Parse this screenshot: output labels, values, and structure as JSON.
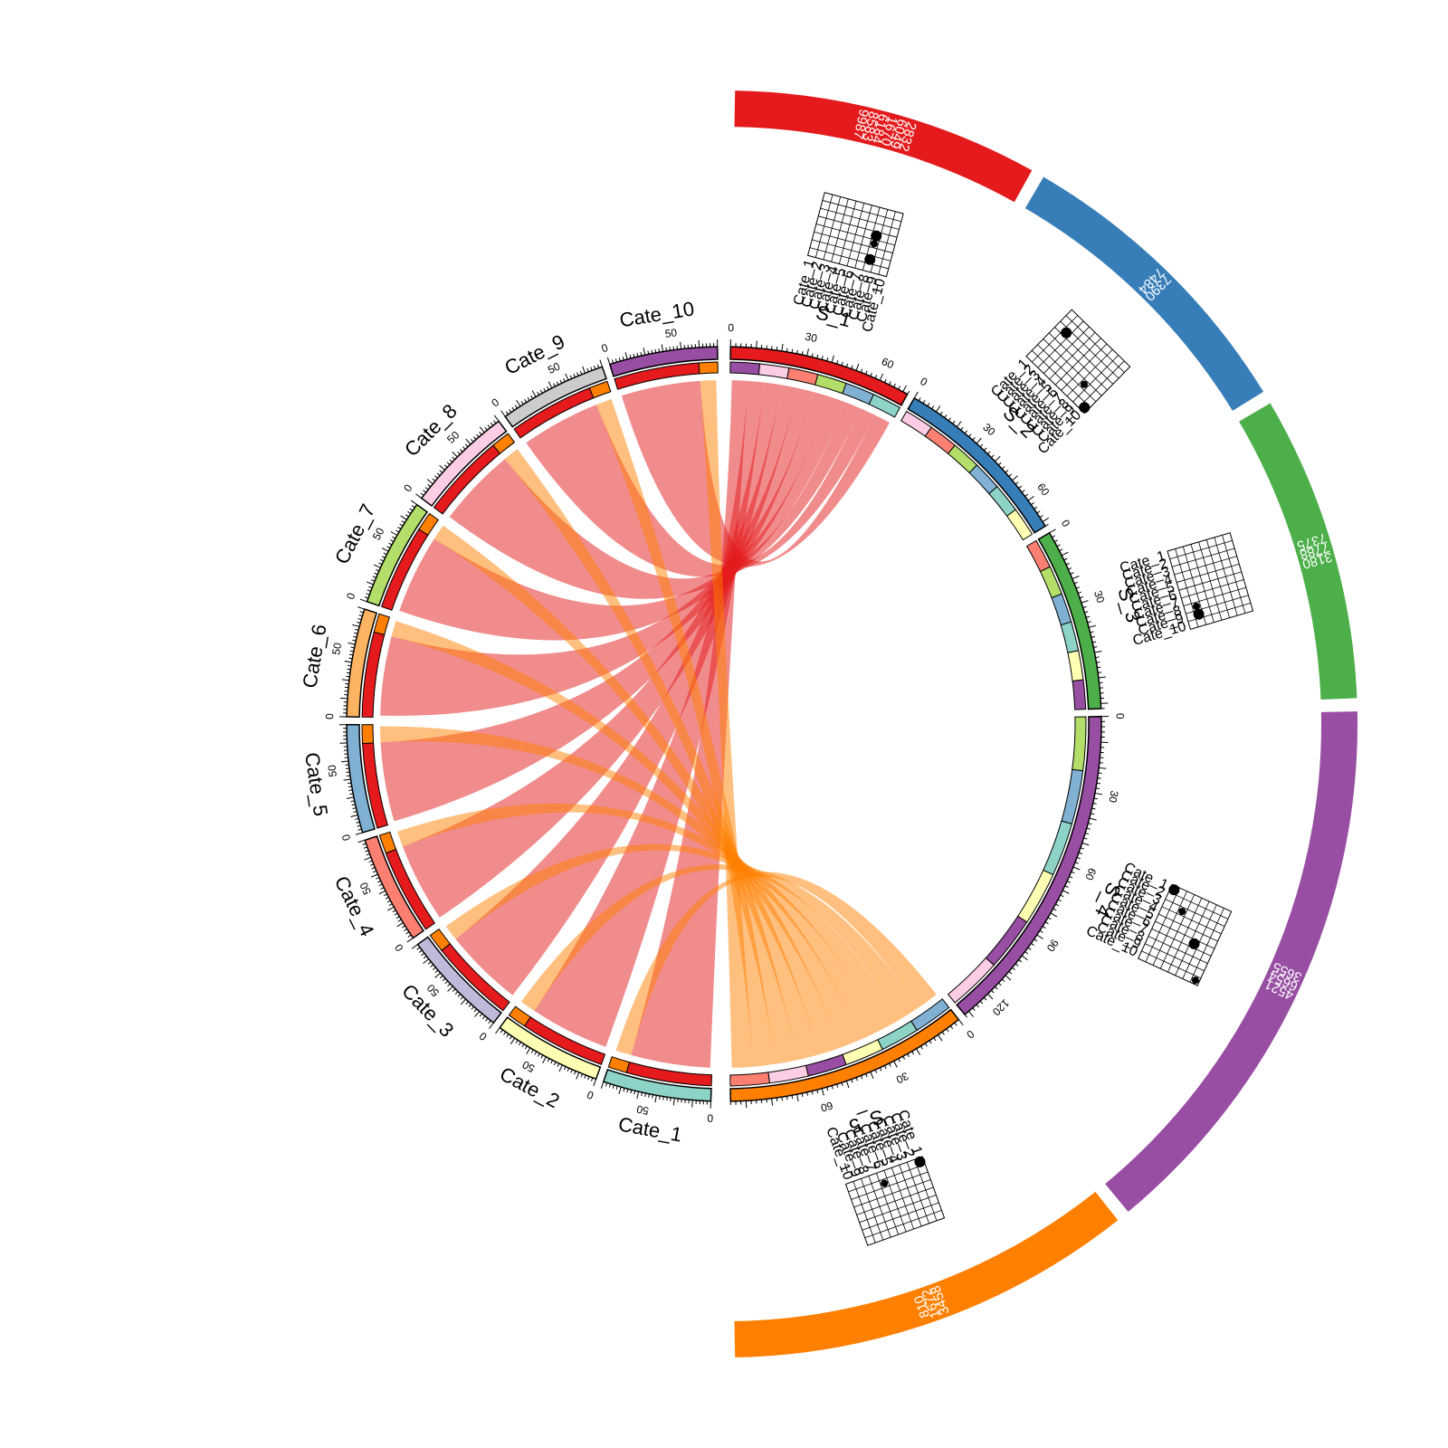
{
  "chart_data": {
    "type": "chord",
    "sources": [
      {
        "name": "S_1",
        "color": "#E41A1C",
        "size": 72,
        "tick_labels": [
          "0",
          "30",
          "60"
        ],
        "outer_numbers": [
          "9987",
          "8583",
          "6184",
          "1670",
          "6049",
          "2832"
        ],
        "dots": [
          {
            "category": "Cate_8",
            "value": 2
          },
          {
            "category": "Cate_8",
            "value": 4
          },
          {
            "category": "Cate_8",
            "value": 5
          }
        ]
      },
      {
        "name": "S_2",
        "color": "#377EB8",
        "size": 72,
        "tick_labels": [
          "0",
          "30",
          "60"
        ],
        "outer_numbers": [
          "7484",
          "7390"
        ],
        "dots": [
          {
            "category": "Cate_10",
            "value": 1
          },
          {
            "category": "Cate_8",
            "value": 3
          },
          {
            "category": "Cate_2",
            "value": 6
          }
        ]
      },
      {
        "name": "S_3",
        "color": "#4DAF4A",
        "size": 72,
        "tick_labels": [
          "0",
          "30"
        ],
        "outer_numbers": [
          "7375",
          "7788",
          "3180"
        ],
        "dots": [
          {
            "category": "Cate_9",
            "value": 2
          },
          {
            "category": "Cate_8",
            "value": 2
          }
        ]
      },
      {
        "name": "S_4",
        "color": "#984EA3",
        "size": 132,
        "tick_labels": [
          "0",
          "30",
          "60",
          "90",
          "120"
        ],
        "outer_numbers": [
          "3655",
          "6654",
          "4521"
        ],
        "dots": [
          {
            "category": "Cate_1",
            "value": 1
          },
          {
            "category": "Cate_3",
            "value": 3
          },
          {
            "category": "Cate_6",
            "value": 6
          },
          {
            "category": "Cate_10",
            "value": 8
          }
        ]
      },
      {
        "name": "S_5",
        "color": "#FF7F00",
        "size": 96,
        "tick_labels": [
          "0",
          "30",
          "60"
        ],
        "outer_numbers": [
          "3458",
          "1672",
          "810"
        ],
        "dots": [
          {
            "category": "Cate_1",
            "value": 1
          },
          {
            "category": "Cate_6",
            "value": 2
          }
        ]
      }
    ],
    "targets": [
      {
        "name": "Cate_10",
        "color": "#984EA3",
        "tick_labels": [
          "0",
          "50"
        ],
        "links": {
          "S_1": 70,
          "S_5": 14
        }
      },
      {
        "name": "Cate_9",
        "color": "#CCCCCC",
        "tick_labels": [
          "0",
          "50"
        ],
        "links": {
          "S_1": 70,
          "S_5": 14
        }
      },
      {
        "name": "Cate_8",
        "color": "#FCCDE5",
        "tick_labels": [
          "0",
          "50"
        ],
        "links": {
          "S_1": 70,
          "S_5": 14
        }
      },
      {
        "name": "Cate_7",
        "color": "#B3DE69",
        "tick_labels": [
          "0",
          "50"
        ],
        "links": {
          "S_1": 70,
          "S_5": 14
        }
      },
      {
        "name": "Cate_6",
        "color": "#FDB462",
        "tick_labels": [
          "0",
          "50"
        ],
        "links": {
          "S_1": 70,
          "S_5": 14
        }
      },
      {
        "name": "Cate_5",
        "color": "#80B1D3",
        "tick_labels": [
          "0",
          "50"
        ],
        "links": {
          "S_1": 70,
          "S_5": 14
        }
      },
      {
        "name": "Cate_4",
        "color": "#FB8072",
        "tick_labels": [
          "0",
          "50"
        ],
        "links": {
          "S_1": 70,
          "S_5": 14
        }
      },
      {
        "name": "Cate_3",
        "color": "#BEBADA",
        "tick_labels": [
          "0",
          "50"
        ],
        "links": {
          "S_1": 70,
          "S_5": 14
        }
      },
      {
        "name": "Cate_2",
        "color": "#FFFFB3",
        "tick_labels": [
          "0",
          "50"
        ],
        "links": {
          "S_1": 70,
          "S_5": 14
        }
      },
      {
        "name": "Cate_1",
        "color": "#8DD3C7",
        "tick_labels": [
          "0",
          "50"
        ],
        "links": {
          "S_1": 70,
          "S_5": 14
        }
      }
    ],
    "grid_categories": [
      "Cate_1",
      "Cate_2",
      "Cate_3",
      "Cate_4",
      "Cate_5",
      "Cate_6",
      "Cate_7",
      "Cate_8",
      "Cate_9",
      "Cate_10"
    ]
  }
}
